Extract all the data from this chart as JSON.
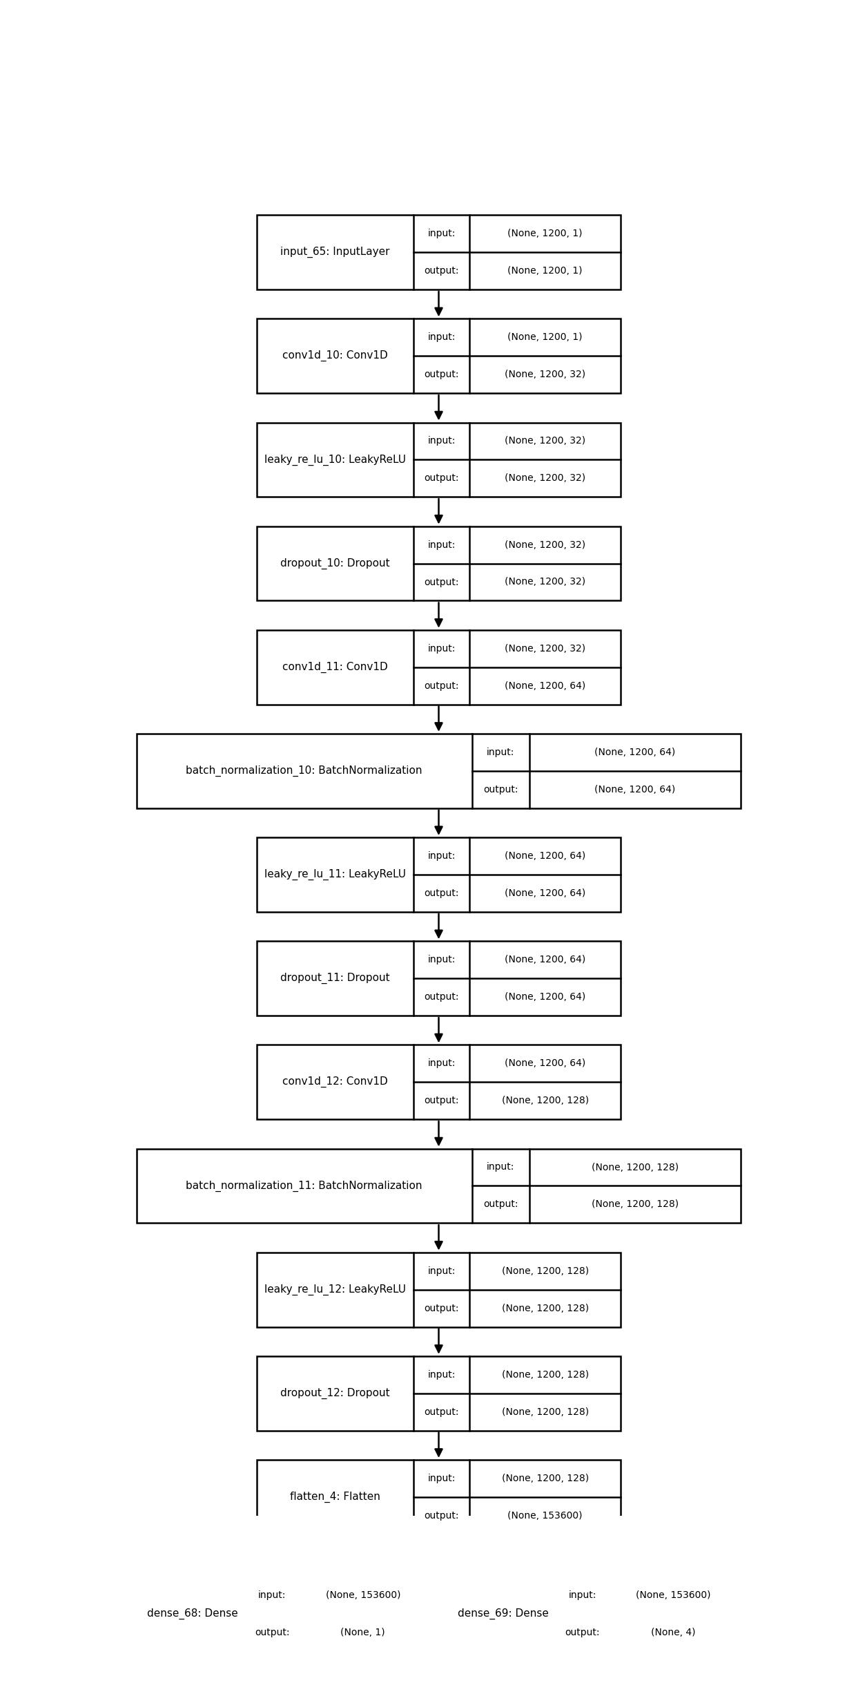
{
  "layers": [
    {
      "name": "input_65: InputLayer",
      "input": "(None, 1200, 1)",
      "output": "(None, 1200, 1)",
      "wide": false
    },
    {
      "name": "conv1d_10: Conv1D",
      "input": "(None, 1200, 1)",
      "output": "(None, 1200, 32)",
      "wide": false
    },
    {
      "name": "leaky_re_lu_10: LeakyReLU",
      "input": "(None, 1200, 32)",
      "output": "(None, 1200, 32)",
      "wide": false
    },
    {
      "name": "dropout_10: Dropout",
      "input": "(None, 1200, 32)",
      "output": "(None, 1200, 32)",
      "wide": false
    },
    {
      "name": "conv1d_11: Conv1D",
      "input": "(None, 1200, 32)",
      "output": "(None, 1200, 64)",
      "wide": false
    },
    {
      "name": "batch_normalization_10: BatchNormalization",
      "input": "(None, 1200, 64)",
      "output": "(None, 1200, 64)",
      "wide": true
    },
    {
      "name": "leaky_re_lu_11: LeakyReLU",
      "input": "(None, 1200, 64)",
      "output": "(None, 1200, 64)",
      "wide": false
    },
    {
      "name": "dropout_11: Dropout",
      "input": "(None, 1200, 64)",
      "output": "(None, 1200, 64)",
      "wide": false
    },
    {
      "name": "conv1d_12: Conv1D",
      "input": "(None, 1200, 64)",
      "output": "(None, 1200, 128)",
      "wide": false
    },
    {
      "name": "batch_normalization_11: BatchNormalization",
      "input": "(None, 1200, 128)",
      "output": "(None, 1200, 128)",
      "wide": true
    },
    {
      "name": "leaky_re_lu_12: LeakyReLU",
      "input": "(None, 1200, 128)",
      "output": "(None, 1200, 128)",
      "wide": false
    },
    {
      "name": "dropout_12: Dropout",
      "input": "(None, 1200, 128)",
      "output": "(None, 1200, 128)",
      "wide": false
    },
    {
      "name": "flatten_4: Flatten",
      "input": "(None, 1200, 128)",
      "output": "(None, 153600)",
      "wide": false
    }
  ],
  "dense_left": {
    "name": "dense_68: Dense",
    "input": "(None, 153600)",
    "output": "(None, 1)"
  },
  "dense_right": {
    "name": "dense_69: Dense",
    "input": "(None, 153600)",
    "output": "(None, 4)"
  },
  "fig_width": 12.4,
  "fig_height": 24.65,
  "bg_color": "#ffffff",
  "box_color": "#ffffff",
  "border_color": "#000000",
  "text_color": "#000000",
  "font_size": 11,
  "label_font_size": 10
}
